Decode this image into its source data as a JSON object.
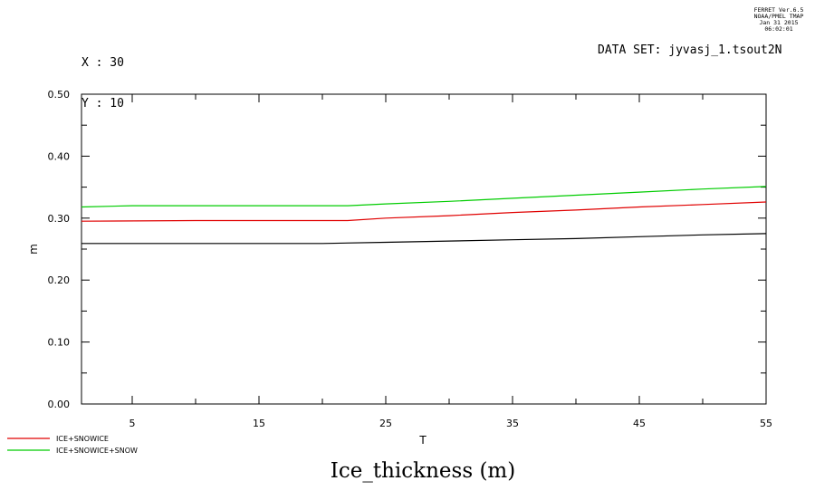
{
  "header": {
    "x_label": "X : 30",
    "y_label": "Y : 10",
    "dataset": "DATA SET: jyvasj_1.tsout2N",
    "stamp_line1": "FERRET Ver.6.5",
    "stamp_line2": "NOAA/PMEL TMAP",
    "stamp_line3": "Jan 31 2015 06:02:01"
  },
  "chart_data": {
    "type": "line",
    "title": "Ice_thickness (m)",
    "xlabel": "T",
    "ylabel": "m",
    "xlim": [
      1,
      55
    ],
    "ylim": [
      0,
      0.5
    ],
    "x_ticks": [
      5,
      15,
      25,
      35,
      45,
      55
    ],
    "x_tick_labels": [
      "5",
      "15",
      "25",
      "35",
      "45",
      "55"
    ],
    "y_ticks": [
      0,
      0.1,
      0.2,
      0.3,
      0.4,
      0.5
    ],
    "y_tick_labels": [
      "0.00",
      "0.10",
      "0.20",
      "0.30",
      "0.40",
      "0.50"
    ],
    "grid": false,
    "legend_position": "bottom-left",
    "series": [
      {
        "name": "",
        "color": "#000000",
        "x": [
          1,
          10,
          20,
          25,
          30,
          35,
          40,
          45,
          50,
          55
        ],
        "y": [
          0.259,
          0.259,
          0.259,
          0.261,
          0.263,
          0.265,
          0.267,
          0.27,
          0.273,
          0.275
        ]
      },
      {
        "name": "ICE+SNOWICE",
        "color": "#e00000",
        "x": [
          1,
          10,
          20,
          22,
          25,
          30,
          35,
          40,
          45,
          50,
          55
        ],
        "y": [
          0.295,
          0.296,
          0.296,
          0.296,
          0.3,
          0.304,
          0.309,
          0.313,
          0.318,
          0.322,
          0.326
        ]
      },
      {
        "name": "ICE+SNOWICE+SNOW",
        "color": "#00cc00",
        "x": [
          1,
          5,
          10,
          15,
          20,
          22,
          25,
          30,
          35,
          40,
          45,
          50,
          55
        ],
        "y": [
          0.318,
          0.32,
          0.32,
          0.32,
          0.32,
          0.32,
          0.323,
          0.327,
          0.332,
          0.337,
          0.342,
          0.347,
          0.351
        ]
      }
    ]
  }
}
